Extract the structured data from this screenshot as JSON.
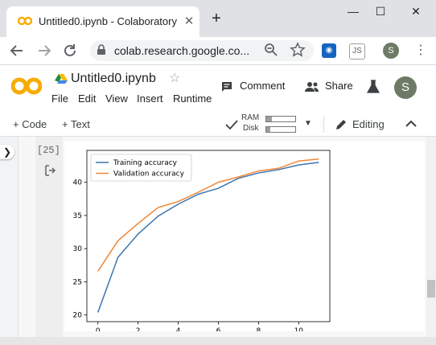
{
  "browser": {
    "tab_title": "Untitled0.ipynb - Colaboratory",
    "close_glyph": "✕",
    "new_tab_glyph": "+",
    "url": "colab.research.google.co...",
    "profile_initial": "S",
    "window_controls": {
      "minimize": "—",
      "maximize": "☐",
      "close": "✕"
    }
  },
  "colab": {
    "notebook_name": "Untitled0.ipynb",
    "menu": [
      "File",
      "Edit",
      "View",
      "Insert",
      "Runtime"
    ],
    "comment_label": "Comment",
    "share_label": "Share",
    "user_initial": "S",
    "brand_color": "#f9ab00"
  },
  "toolbar": {
    "add_code": "+ Code",
    "add_text": "+ Text",
    "ram_label": "RAM",
    "disk_label": "Disk",
    "ram_fill": 0.2,
    "disk_fill": 0.15,
    "editing_label": "Editing"
  },
  "cell": {
    "exec_count": "[25]"
  },
  "chart_data": {
    "type": "line",
    "xlim": [
      -0.55,
      11.55
    ],
    "ylim": [
      19,
      44.8
    ],
    "xticks": [
      0,
      2,
      4,
      6,
      8,
      10
    ],
    "yticks": [
      20,
      25,
      30,
      35,
      40
    ],
    "legend_position": "upper-left",
    "grid": false,
    "series": [
      {
        "name": "Training accuracy",
        "color": "#3b75af",
        "x": [
          0,
          1,
          2,
          3,
          4,
          5,
          6,
          7,
          8,
          9,
          10,
          11
        ],
        "values": [
          20.4,
          28.7,
          32.2,
          34.9,
          36.7,
          38.2,
          39.1,
          40.6,
          41.4,
          41.9,
          42.6,
          43.0
        ]
      },
      {
        "name": "Validation accuracy",
        "color": "#ef8636",
        "x": [
          0,
          1,
          2,
          3,
          4,
          5,
          6,
          7,
          8,
          9,
          10,
          11
        ],
        "values": [
          26.6,
          31.2,
          33.8,
          36.2,
          37.1,
          38.5,
          40.0,
          40.8,
          41.7,
          42.1,
          43.2,
          43.5
        ]
      }
    ]
  }
}
